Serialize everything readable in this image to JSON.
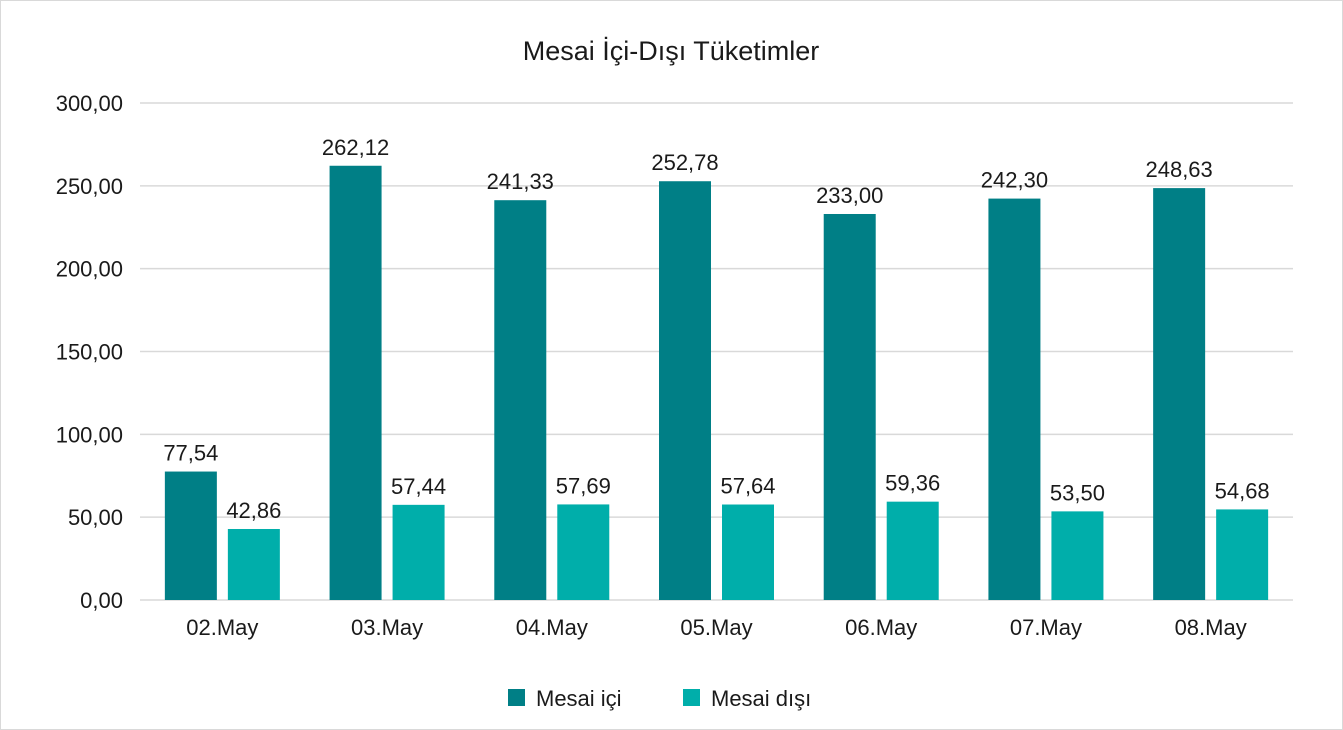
{
  "chart_data": {
    "type": "bar",
    "title": "Mesai İçi-Dışı Tüketimler",
    "xlabel": "",
    "ylabel": "",
    "categories": [
      "02.May",
      "03.May",
      "04.May",
      "05.May",
      "06.May",
      "07.May",
      "08.May"
    ],
    "series": [
      {
        "name": "Mesai içi",
        "color": "#007f86",
        "values": [
          77.54,
          262.12,
          241.33,
          252.78,
          233.0,
          242.3,
          248.63
        ],
        "labels": [
          "77,54",
          "262,12",
          "241,33",
          "252,78",
          "233,00",
          "242,30",
          "248,63"
        ]
      },
      {
        "name": "Mesai dışı",
        "color": "#00aeaa",
        "values": [
          42.86,
          57.44,
          57.69,
          57.64,
          59.36,
          53.5,
          54.68
        ],
        "labels": [
          "42,86",
          "57,44",
          "57,69",
          "57,64",
          "59,36",
          "53,50",
          "54,68"
        ]
      }
    ],
    "ylim": [
      0,
      300
    ],
    "yticks": [
      0,
      50,
      100,
      150,
      200,
      250,
      300
    ],
    "ytick_labels": [
      "0,00",
      "50,00",
      "100,00",
      "150,00",
      "200,00",
      "250,00",
      "300,00"
    ],
    "grid": true,
    "legend": "bottom"
  }
}
